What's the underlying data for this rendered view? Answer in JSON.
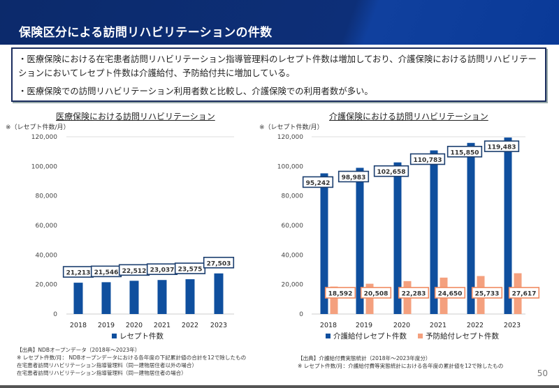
{
  "header": {
    "title": "保険区分による訪問リハビリテーションの件数"
  },
  "summary": {
    "bullets": [
      "・医療保険における在宅患者訪問リハビリテーション指導管理料のレセプト件数は増加しており、介護保険における訪問リハビリテーションにおいてレセプト件数は介護給付、予防給付共に増加している。",
      "・医療保険での訪問リハビリテーション利用者数と比較し、介護保険での利用者数が多い。"
    ]
  },
  "chart_data": [
    {
      "type": "bar",
      "title": "医療保険における訪問リハビリテーション",
      "ylabel": "※（レセプト件数/月）",
      "categories": [
        "2018",
        "2019",
        "2020",
        "2021",
        "2022",
        "2023"
      ],
      "ylim": [
        0,
        120000
      ],
      "yticks": [
        "0",
        "20,000",
        "40,000",
        "60,000",
        "80,000",
        "100,000",
        "120,000"
      ],
      "grid": false,
      "legend": "bottom",
      "series": [
        {
          "name": "レセプト件数",
          "color": "#0f4f9e",
          "values": [
            21213,
            21546,
            22512,
            23037,
            23575,
            27503
          ],
          "labels": [
            "21,213",
            "21,546",
            "22,512",
            "23,037",
            "23,575",
            "27,503"
          ]
        }
      ]
    },
    {
      "type": "bar",
      "title": "介護保険における訪問リハビリテーション",
      "ylabel": "※（レセプト件数/月）",
      "categories": [
        "2018",
        "2019",
        "2020",
        "2021",
        "2022",
        "2023"
      ],
      "ylim": [
        0,
        120000
      ],
      "yticks": [
        "0",
        "20,000",
        "40,000",
        "60,000",
        "80,000",
        "100,000",
        "120,000"
      ],
      "grid": false,
      "legend": "bottom",
      "series": [
        {
          "name": "介護給付レセプト件数",
          "color": "#0f4f9e",
          "values": [
            95242,
            98983,
            102658,
            110783,
            115850,
            119483
          ],
          "labels": [
            "95,242",
            "98,983",
            "102,658",
            "110,783",
            "115,850",
            "119,483"
          ]
        },
        {
          "name": "予防給付レセプト件数",
          "color": "#f4a07e",
          "values": [
            18592,
            20508,
            22283,
            24650,
            25733,
            27617
          ],
          "labels": [
            "18,592",
            "20,508",
            "22,283",
            "24,650",
            "25,733",
            "27,617"
          ]
        }
      ]
    }
  ],
  "notes": {
    "left": [
      "【出典】NDBオープンデータ（2018年～2023年）",
      "※ レセプト件数/月： NDBオープンデータにおける各年度の下記累計値の合計を12で除したもの",
      "在宅患者訪問リハビリテーション指導管理料（同一建物居住者以外の場合）",
      "在宅患者訪問リハビリテーション指導管理料（同一建物居住者の場合）"
    ],
    "right": [
      "【出典】介護給付費実態統計（2018年～2023年度分）",
      "※ レセプト件数/月：介護給付費等実態統計における各年度の累計値を12で除したもの"
    ]
  },
  "page_number": "50"
}
